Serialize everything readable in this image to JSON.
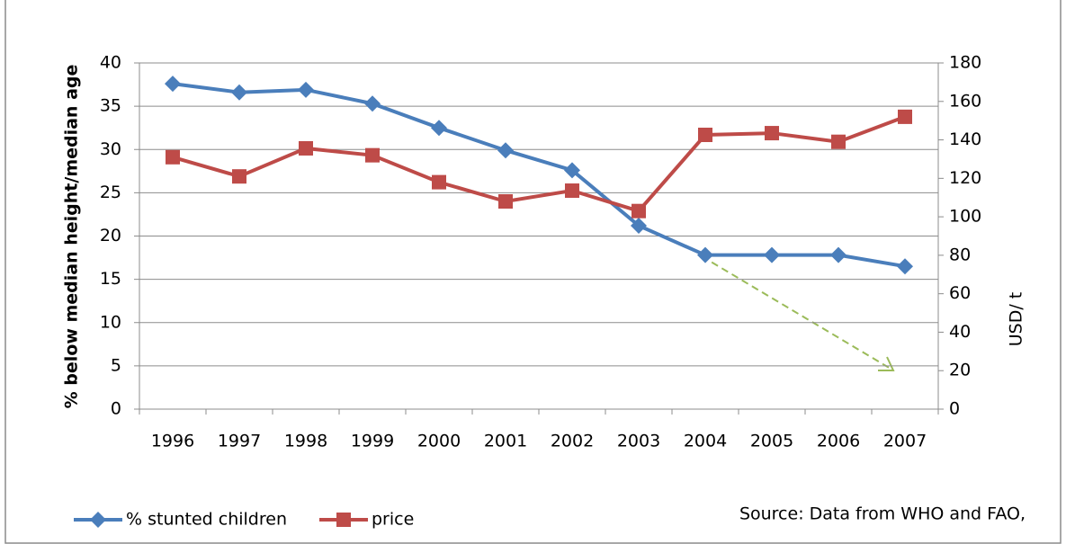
{
  "chart_data": {
    "type": "line",
    "categories": [
      "1996",
      "1997",
      "1998",
      "1999",
      "2000",
      "2001",
      "2002",
      "2003",
      "2004",
      "2005",
      "2006",
      "2007"
    ],
    "series": [
      {
        "name": "% stunted children",
        "color": "#4a7ebb",
        "marker": "diamond",
        "values": [
          37.6,
          36.6,
          36.9,
          35.3,
          32.5,
          29.9,
          27.6,
          21.2,
          17.8,
          17.8,
          17.8,
          16.5
        ]
      },
      {
        "name": "price",
        "color": "#be4b48",
        "marker": "square",
        "axis": "y2",
        "values": [
          131,
          121,
          135.6,
          132,
          118,
          108,
          113.6,
          103,
          142.6,
          143.5,
          139,
          152
        ]
      }
    ],
    "y_label": "% below median height/median age",
    "y2_label": "USD/ t",
    "ylim": [
      0,
      40
    ],
    "yticks": [
      0,
      5,
      10,
      15,
      20,
      25,
      30,
      35,
      40
    ],
    "y2lim": [
      0,
      180
    ],
    "y2ticks": [
      0,
      20,
      40,
      60,
      80,
      100,
      120,
      140,
      160,
      180
    ],
    "grid": true,
    "legend": "bottom",
    "annotation": "Source: Data from WHO and FAO,"
  }
}
